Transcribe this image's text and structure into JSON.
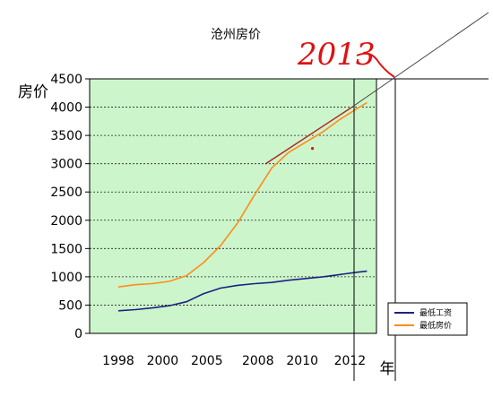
{
  "chart_data": {
    "type": "line",
    "title": "沧州房价",
    "ylabel": "房价",
    "xlabel": "年",
    "x_ticks": [
      "1998",
      "2000",
      "2005",
      "2008",
      "2010",
      "2012"
    ],
    "y_ticks": [
      0,
      500,
      1000,
      1500,
      2000,
      2500,
      3000,
      3500,
      4000,
      4500
    ],
    "ylim": [
      0,
      4500
    ],
    "grid": true,
    "legend_position": "bottom-right",
    "series": [
      {
        "name": "最低工资",
        "color": "#1a237e",
        "points": [
          [
            0,
            400
          ],
          [
            0.5,
            420
          ],
          [
            1,
            450
          ],
          [
            1.5,
            490
          ],
          [
            2,
            560
          ],
          [
            2.5,
            700
          ],
          [
            3,
            800
          ],
          [
            3.5,
            850
          ],
          [
            4,
            880
          ],
          [
            4.5,
            900
          ],
          [
            5,
            940
          ],
          [
            5.5,
            970
          ],
          [
            6,
            1000
          ],
          [
            6.5,
            1040
          ],
          [
            7,
            1080
          ],
          [
            7.3,
            1100
          ]
        ]
      },
      {
        "name": "最低房价",
        "color": "#ff8c1a",
        "points": [
          [
            0,
            820
          ],
          [
            0.5,
            860
          ],
          [
            1,
            880
          ],
          [
            1.5,
            920
          ],
          [
            2,
            1020
          ],
          [
            2.5,
            1250
          ],
          [
            3,
            1550
          ],
          [
            3.5,
            1950
          ],
          [
            4,
            2450
          ],
          [
            4.5,
            2920
          ],
          [
            5,
            3200
          ],
          [
            5.5,
            3380
          ],
          [
            6,
            3560
          ],
          [
            6.5,
            3780
          ],
          [
            7,
            3970
          ],
          [
            7.3,
            4080
          ]
        ]
      }
    ],
    "annotations": {
      "year_label": "2013",
      "stray_point": {
        "x": 5.7,
        "y": 3270
      }
    }
  },
  "colors": {
    "plot_bg": "#ccf5cc",
    "annotation": "#e01010",
    "trend_line": "#404040"
  }
}
